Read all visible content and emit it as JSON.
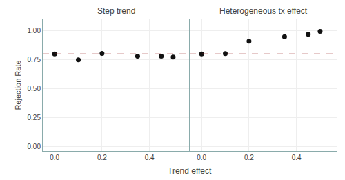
{
  "chart_data": [
    {
      "type": "scatter",
      "title": "Step trend",
      "x_label": "Trend effect",
      "y_label": "Rejection Rate",
      "x": [
        0.0,
        0.1,
        0.2,
        0.35,
        0.45,
        0.5
      ],
      "values": [
        0.8,
        0.75,
        0.805,
        0.78,
        0.78,
        0.773
      ],
      "color": "#111111",
      "xlim": [
        -0.05,
        0.57
      ],
      "ylim": [
        -0.04,
        1.1
      ],
      "xticks": [
        {
          "value": 0.0,
          "label": "0.0"
        },
        0.2,
        0.4
      ],
      "yticks": [
        {
          "value": 0.0,
          "label": "0.00"
        },
        0.25,
        {
          "value": 0.5,
          "label": "0.50"
        },
        0.75,
        {
          "value": 1.0,
          "label": "1.00"
        }
      ],
      "grid": true,
      "hline": {
        "value": 0.8,
        "color": "#9b2929",
        "line_style": "dashed"
      }
    },
    {
      "type": "scatter",
      "title": "Heterogeneous tx effect",
      "x": [
        0.0,
        0.1,
        0.2,
        0.35,
        0.45,
        0.5
      ],
      "values": [
        0.8,
        0.803,
        0.91,
        0.95,
        0.97,
        0.995
      ],
      "color": "#111111",
      "xlim": [
        -0.05,
        0.57
      ],
      "ylim": [
        -0.04,
        1.1
      ],
      "xticks": [
        {
          "value": 0.0,
          "label": "0.0"
        },
        0.2,
        0.4
      ],
      "yticks": [
        {
          "value": 0.0,
          "label": "0.00"
        },
        0.25,
        {
          "value": 0.5,
          "label": "0.50"
        },
        0.75,
        {
          "value": 1.0,
          "label": "1.00"
        }
      ],
      "grid": true,
      "tick_labels": "x",
      "hline": {
        "value": 0.8,
        "color": "#9b2929",
        "line_style": "dashed"
      }
    }
  ]
}
